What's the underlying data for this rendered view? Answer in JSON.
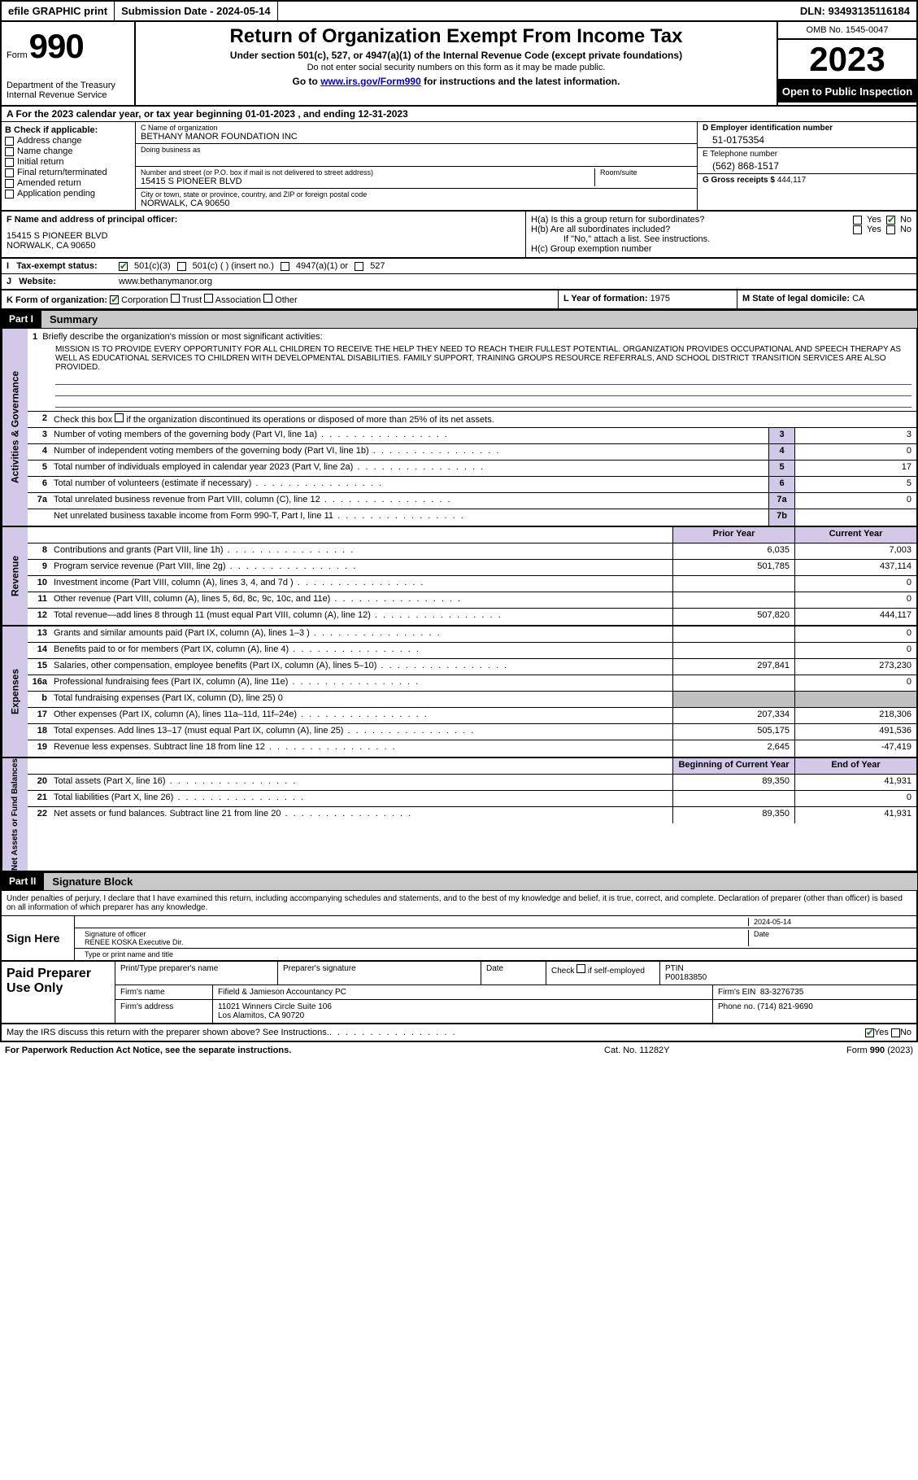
{
  "top_bar": {
    "efile": "efile GRAPHIC print",
    "sub_date_label": "Submission Date - 2024-05-14",
    "dln": "DLN: 93493135116184"
  },
  "header": {
    "form_word": "Form",
    "form_num": "990",
    "dept": "Department of the Treasury Internal Revenue Service",
    "title": "Return of Organization Exempt From Income Tax",
    "subtitle": "Under section 501(c), 527, or 4947(a)(1) of the Internal Revenue Code (except private foundations)",
    "ssn_note": "Do not enter social security numbers on this form as it may be made public.",
    "goto": "Go to www.irs.gov/Form990 for instructions and the latest information.",
    "goto_url": "www.irs.gov/Form990",
    "omb": "OMB No. 1545-0047",
    "year": "2023",
    "open": "Open to Public Inspection"
  },
  "line_a": "A For the 2023 calendar year, or tax year beginning 01-01-2023   , and ending 12-31-2023",
  "col_b": {
    "label": "B Check if applicable:",
    "items": [
      "Address change",
      "Name change",
      "Initial return",
      "Final return/terminated",
      "Amended return",
      "Application pending"
    ]
  },
  "col_c": {
    "name_label": "C Name of organization",
    "name": "BETHANY MANOR FOUNDATION INC",
    "dba_label": "Doing business as",
    "street_label": "Number and street (or P.O. box if mail is not delivered to street address)",
    "room_label": "Room/suite",
    "street": "15415 S PIONEER BLVD",
    "city_label": "City or town, state or province, country, and ZIP or foreign postal code",
    "city": "NORWALK, CA  90650"
  },
  "col_d": {
    "ein_label": "D Employer identification number",
    "ein": "51-0175354",
    "tel_label": "E Telephone number",
    "tel": "(562) 868-1517",
    "gross_label": "G Gross receipts $",
    "gross": "444,117"
  },
  "row_f": {
    "label": "F  Name and address of principal officer:",
    "addr1": "15415 S PIONEER BLVD",
    "addr2": "NORWALK, CA  90650"
  },
  "row_h": {
    "ha": "H(a)  Is this a group return for subordinates?",
    "hb": "H(b)  Are all subordinates included?",
    "hb_note": "If \"No,\" attach a list. See instructions.",
    "hc": "H(c)  Group exemption number"
  },
  "row_i": {
    "label": "Tax-exempt status:",
    "opts": [
      "501(c)(3)",
      "501(c) (  ) (insert no.)",
      "4947(a)(1) or",
      "527"
    ]
  },
  "row_j": {
    "label": "Website:",
    "val": "www.bethanymanor.org"
  },
  "row_k": {
    "label": "K Form of organization:",
    "opts": [
      "Corporation",
      "Trust",
      "Association",
      "Other"
    ]
  },
  "row_l": {
    "label": "L Year of formation:",
    "val": "1975"
  },
  "row_m": {
    "label": "M State of legal domicile:",
    "val": "CA"
  },
  "parts": {
    "p1": "Part I",
    "p1_title": "Summary",
    "p2": "Part II",
    "p2_title": "Signature Block"
  },
  "side_labels": {
    "gov": "Activities & Governance",
    "rev": "Revenue",
    "exp": "Expenses",
    "net": "Net Assets or Fund Balances"
  },
  "line1": {
    "label": "Briefly describe the organization's mission or most significant activities:",
    "mission": "MISSION IS TO PROVIDE EVERY OPPORTUNITY FOR ALL CHILDREN TO RECEIVE THE HELP THEY NEED TO REACH THEIR FULLEST POTENTIAL. ORGANIZATION PROVIDES OCCUPATIONAL AND SPEECH THERAPY AS WELL AS EDUCATIONAL SERVICES TO CHILDREN WITH DEVELOPMENTAL DISABILITIES. FAMILY SUPPORT, TRAINING GROUPS RESOURCE REFERRALS, AND SCHOOL DISTRICT TRANSITION SERVICES ARE ALSO PROVIDED."
  },
  "line2": "Check this box      if the organization discontinued its operations or disposed of more than 25% of its net assets.",
  "gov_rows": [
    {
      "n": "3",
      "desc": "Number of voting members of the governing body (Part VI, line 1a)",
      "box": "3",
      "val": "3"
    },
    {
      "n": "4",
      "desc": "Number of independent voting members of the governing body (Part VI, line 1b)",
      "box": "4",
      "val": "0"
    },
    {
      "n": "5",
      "desc": "Total number of individuals employed in calendar year 2023 (Part V, line 2a)",
      "box": "5",
      "val": "17"
    },
    {
      "n": "6",
      "desc": "Total number of volunteers (estimate if necessary)",
      "box": "6",
      "val": "5"
    },
    {
      "n": "7a",
      "desc": "Total unrelated business revenue from Part VIII, column (C), line 12",
      "box": "7a",
      "val": "0"
    },
    {
      "n": "",
      "sub": "b",
      "desc": "Net unrelated business taxable income from Form 990-T, Part I, line 11",
      "box": "7b",
      "val": ""
    }
  ],
  "col_hdrs": {
    "prior": "Prior Year",
    "current": "Current Year",
    "boy": "Beginning of Current Year",
    "eoy": "End of Year"
  },
  "rev_rows": [
    {
      "n": "8",
      "desc": "Contributions and grants (Part VIII, line 1h)",
      "py": "6,035",
      "cy": "7,003"
    },
    {
      "n": "9",
      "desc": "Program service revenue (Part VIII, line 2g)",
      "py": "501,785",
      "cy": "437,114"
    },
    {
      "n": "10",
      "desc": "Investment income (Part VIII, column (A), lines 3, 4, and 7d )",
      "py": "",
      "cy": "0"
    },
    {
      "n": "11",
      "desc": "Other revenue (Part VIII, column (A), lines 5, 6d, 8c, 9c, 10c, and 11e)",
      "py": "",
      "cy": "0"
    },
    {
      "n": "12",
      "desc": "Total revenue—add lines 8 through 11 (must equal Part VIII, column (A), line 12)",
      "py": "507,820",
      "cy": "444,117"
    }
  ],
  "exp_rows": [
    {
      "n": "13",
      "desc": "Grants and similar amounts paid (Part IX, column (A), lines 1–3 )",
      "py": "",
      "cy": "0"
    },
    {
      "n": "14",
      "desc": "Benefits paid to or for members (Part IX, column (A), line 4)",
      "py": "",
      "cy": "0"
    },
    {
      "n": "15",
      "desc": "Salaries, other compensation, employee benefits (Part IX, column (A), lines 5–10)",
      "py": "297,841",
      "cy": "273,230"
    },
    {
      "n": "16a",
      "desc": "Professional fundraising fees (Part IX, column (A), line 11e)",
      "py": "",
      "cy": "0"
    },
    {
      "n": "",
      "sub": "b",
      "desc": "Total fundraising expenses (Part IX, column (D), line 25) 0",
      "grey": true
    },
    {
      "n": "17",
      "desc": "Other expenses (Part IX, column (A), lines 11a–11d, 11f–24e)",
      "py": "207,334",
      "cy": "218,306"
    },
    {
      "n": "18",
      "desc": "Total expenses. Add lines 13–17 (must equal Part IX, column (A), line 25)",
      "py": "505,175",
      "cy": "491,536"
    },
    {
      "n": "19",
      "desc": "Revenue less expenses. Subtract line 18 from line 12",
      "py": "2,645",
      "cy": "-47,419"
    }
  ],
  "net_rows": [
    {
      "n": "20",
      "desc": "Total assets (Part X, line 16)",
      "py": "89,350",
      "cy": "41,931"
    },
    {
      "n": "21",
      "desc": "Total liabilities (Part X, line 26)",
      "py": "",
      "cy": "0"
    },
    {
      "n": "22",
      "desc": "Net assets or fund balances. Subtract line 21 from line 20",
      "py": "89,350",
      "cy": "41,931"
    }
  ],
  "sig": {
    "penalty": "Under penalties of perjury, I declare that I have examined this return, including accompanying schedules and statements, and to the best of my knowledge and belief, it is true, correct, and complete. Declaration of preparer (other than officer) is based on all information of which preparer has any knowledge.",
    "sign_here": "Sign Here",
    "date": "2024-05-14",
    "sig_label": "Signature of officer",
    "officer": "RENEE KOSKA  Executive Dir.",
    "type_label": "Type or print name and title",
    "date_label": "Date"
  },
  "prep": {
    "title": "Paid Preparer Use Only",
    "hdrs": {
      "name": "Print/Type preparer's name",
      "sig": "Preparer's signature",
      "date": "Date",
      "self": "Check      if self-employed",
      "ptin_label": "PTIN"
    },
    "ptin": "P00183850",
    "firm_name_label": "Firm's name",
    "firm_name": "Fifield & Jamieson Accountancy PC",
    "firm_ein_label": "Firm's EIN",
    "firm_ein": "83-3276735",
    "firm_addr_label": "Firm's address",
    "firm_addr1": "11021 Winners Circle Suite 106",
    "firm_addr2": "Los Alamitos, CA  90720",
    "phone_label": "Phone no.",
    "phone": "(714) 821-9690"
  },
  "discuss": "May the IRS discuss this return with the preparer shown above? See Instructions.",
  "footer": {
    "fpn": "For Paperwork Reduction Act Notice, see the separate instructions.",
    "cat": "Cat. No. 11282Y",
    "form": "Form 990 (2023)"
  }
}
